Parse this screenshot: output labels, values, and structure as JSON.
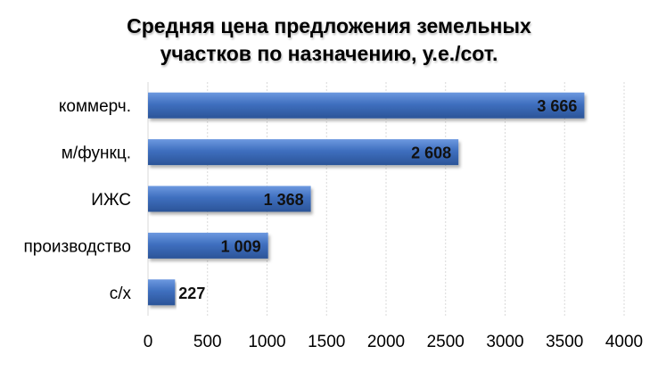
{
  "chart_data": {
    "type": "bar",
    "orientation": "horizontal",
    "title_lines": [
      "Средняя цена предложения земельных",
      "участков по назначению, у.е./сот."
    ],
    "categories": [
      "коммерч.",
      "м/функц.",
      "ИЖС",
      "производство",
      "с/х"
    ],
    "values": [
      3666,
      2608,
      1368,
      1009,
      227
    ],
    "value_labels": [
      "3 666",
      "2 608",
      "1 368",
      "1 009",
      "227"
    ],
    "xlim": [
      0,
      4000
    ],
    "x_ticks": [
      0,
      500,
      1000,
      1500,
      2000,
      2500,
      3000,
      3500,
      4000
    ],
    "grid": true,
    "bar_color": "#3f6fbf",
    "legend": "none"
  }
}
